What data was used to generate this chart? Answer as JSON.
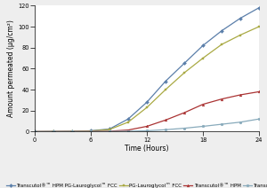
{
  "title": "",
  "xlabel": "Time (Hours)",
  "ylabel": "Amount permeated (μg/cm²)",
  "xlim": [
    0,
    24
  ],
  "ylim": [
    0,
    120
  ],
  "yticks": [
    0,
    20,
    40,
    60,
    80,
    100,
    120
  ],
  "xticks": [
    0,
    6,
    12,
    18,
    24
  ],
  "series": [
    {
      "label": "Transcutol®™ HPM PG-Lauroglycol™ FCC",
      "color": "#5b7faa",
      "marker": "D",
      "x": [
        0,
        2,
        4,
        6,
        8,
        10,
        12,
        14,
        16,
        18,
        20,
        22,
        24
      ],
      "y": [
        0,
        0.1,
        0.3,
        0.8,
        2.5,
        12.0,
        28.0,
        48.0,
        65.0,
        82.0,
        96.0,
        108.0,
        118.0
      ]
    },
    {
      "label": "PG-Lauroglycol™ FCC",
      "color": "#aaaa44",
      "marker": "s",
      "x": [
        0,
        2,
        4,
        6,
        8,
        10,
        12,
        14,
        16,
        18,
        20,
        22,
        24
      ],
      "y": [
        0,
        0.1,
        0.2,
        0.6,
        2.0,
        9.0,
        23.0,
        40.0,
        56.0,
        70.0,
        83.0,
        92.0,
        100.0
      ]
    },
    {
      "label": "Transcutol®™ HPM",
      "color": "#aa3333",
      "marker": "^",
      "x": [
        0,
        2,
        4,
        6,
        8,
        10,
        12,
        14,
        16,
        18,
        20,
        22,
        24
      ],
      "y": [
        0,
        0.05,
        0.1,
        0.2,
        0.4,
        1.5,
        5.0,
        11.0,
        18.0,
        26.0,
        31.0,
        35.0,
        38.0
      ]
    },
    {
      "label": "Transcutol®™",
      "color": "#88aabb",
      "marker": "o",
      "x": [
        0,
        2,
        4,
        6,
        8,
        10,
        12,
        14,
        16,
        18,
        20,
        22,
        24
      ],
      "y": [
        0,
        0.02,
        0.05,
        0.1,
        0.2,
        0.4,
        0.8,
        1.8,
        3.2,
        5.0,
        7.0,
        9.0,
        12.0
      ]
    }
  ],
  "legend_fontsize": 4.0,
  "axis_fontsize": 5.5,
  "tick_fontsize": 4.8,
  "background_color": "#ffffff",
  "figure_bg": "#eeeeee",
  "marker_size": 2.0,
  "line_width": 0.9
}
